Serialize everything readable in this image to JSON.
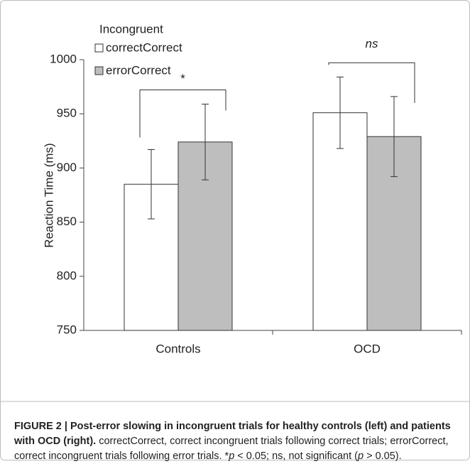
{
  "chart_data": {
    "type": "bar",
    "ylabel": "Reaction Time (ms)",
    "legend_title": "Incongruent",
    "categories": [
      "Controls",
      "OCD"
    ],
    "series": [
      {
        "name": "correctCorrect",
        "color": "#ffffff",
        "values": [
          885,
          951
        ],
        "errors": [
          32,
          33
        ]
      },
      {
        "name": "errorCorrect",
        "color": "#bebebe",
        "values": [
          924,
          929
        ],
        "errors": [
          35,
          37
        ]
      }
    ],
    "ylim": [
      750,
      1000
    ],
    "yticks": [
      750,
      800,
      850,
      900,
      950,
      1000
    ],
    "annotations": [
      "*",
      "ns"
    ],
    "caption": {
      "bold": "FIGURE 2 | Post-error slowing in incongruent trials for healthy controls (left) and patients with OCD (right).",
      "parts": [
        " correctCorrect, correct incongruent trials following correct trials; errorCorrect, correct incongruent trials following error trials. *",
        "p",
        " < 0.05; ns, not significant (",
        "p",
        " > 0.05)."
      ]
    }
  }
}
